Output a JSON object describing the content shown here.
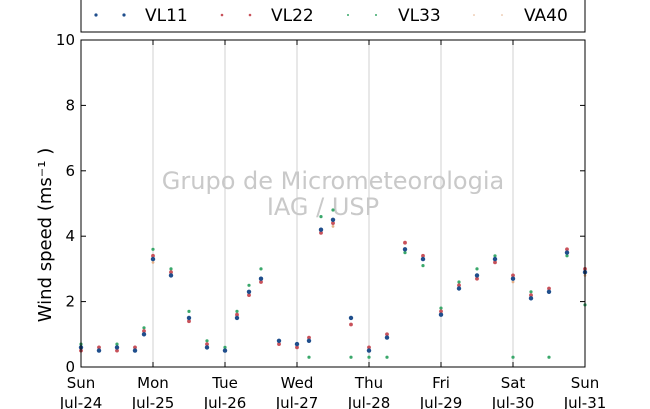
{
  "chart_data": {
    "type": "scatter",
    "title": "",
    "xlabel": "",
    "ylabel": "Wind speed (ms⁻¹ )",
    "ylim": [
      0,
      10
    ],
    "yticks": [
      0,
      2,
      4,
      6,
      8,
      10
    ],
    "xlim": [
      "2016-07-24 00:00",
      "2016-07-31 00:00"
    ],
    "xticks": [
      {
        "day": "Sun",
        "date": "Jul-24"
      },
      {
        "day": "Mon",
        "date": "Jul-25"
      },
      {
        "day": "Tue",
        "date": "Jul-26"
      },
      {
        "day": "Wed",
        "date": "Jul-27"
      },
      {
        "day": "Thu",
        "date": "Jul-28"
      },
      {
        "day": "Fri",
        "date": "Jul-29"
      },
      {
        "day": "Sat",
        "date": "Jul-30"
      },
      {
        "day": "Sun",
        "date": "Jul-31"
      }
    ],
    "grid": "vertical",
    "legend_position": "top",
    "watermark": [
      "Grupo de Micrometeorologia",
      "IAG / USP"
    ],
    "series": [
      {
        "name": "VL11",
        "color": "#1f4e8c",
        "x": [
          "07-24 00:00",
          "07-24 06:00",
          "07-24 12:00",
          "07-24 18:00",
          "07-24 21:00",
          "07-25 00:00",
          "07-25 06:00",
          "07-25 12:00",
          "07-25 18:00",
          "07-26 00:00",
          "07-26 04:00",
          "07-26 08:00",
          "07-26 12:00",
          "07-26 18:00",
          "07-27 00:00",
          "07-27 04:00",
          "07-27 08:00",
          "07-27 12:00",
          "07-27 18:00",
          "07-28 00:00",
          "07-28 06:00",
          "07-28 12:00",
          "07-28 18:00",
          "07-29 00:00",
          "07-29 06:00",
          "07-29 12:00",
          "07-29 18:00",
          "07-30 00:00",
          "07-30 06:00",
          "07-30 12:00",
          "07-30 18:00",
          "07-31 00:00"
        ],
        "y": [
          0.6,
          0.5,
          0.6,
          0.5,
          1.0,
          3.3,
          2.8,
          1.5,
          0.6,
          0.5,
          1.5,
          2.3,
          2.7,
          0.8,
          0.7,
          0.8,
          4.2,
          4.5,
          1.5,
          0.5,
          0.9,
          3.6,
          3.3,
          1.6,
          2.4,
          2.8,
          3.3,
          2.7,
          2.1,
          2.3,
          3.5,
          2.9
        ]
      },
      {
        "name": "VL22",
        "color": "#c8515a",
        "x": [
          "07-24 00:00",
          "07-24 06:00",
          "07-24 12:00",
          "07-24 18:00",
          "07-24 21:00",
          "07-25 00:00",
          "07-25 06:00",
          "07-25 12:00",
          "07-25 18:00",
          "07-26 00:00",
          "07-26 04:00",
          "07-26 08:00",
          "07-26 12:00",
          "07-26 18:00",
          "07-27 00:00",
          "07-27 04:00",
          "07-27 08:00",
          "07-27 12:00",
          "07-27 18:00",
          "07-28 00:00",
          "07-28 06:00",
          "07-28 12:00",
          "07-28 18:00",
          "07-29 00:00",
          "07-29 06:00",
          "07-29 12:00",
          "07-29 18:00",
          "07-30 00:00",
          "07-30 06:00",
          "07-30 12:00",
          "07-30 18:00",
          "07-31 00:00"
        ],
        "y": [
          0.5,
          0.6,
          0.5,
          0.6,
          1.1,
          3.4,
          2.9,
          1.4,
          0.7,
          0.5,
          1.6,
          2.2,
          2.6,
          0.7,
          0.6,
          0.9,
          4.1,
          4.4,
          1.3,
          0.6,
          1.0,
          3.8,
          3.4,
          1.7,
          2.5,
          2.7,
          3.2,
          2.8,
          2.2,
          2.4,
          3.6,
          3.0
        ]
      },
      {
        "name": "VL33",
        "color": "#3aa86b",
        "x": [
          "07-24 00:00",
          "07-24 06:00",
          "07-24 12:00",
          "07-24 18:00",
          "07-24 21:00",
          "07-25 00:00",
          "07-25 06:00",
          "07-25 12:00",
          "07-25 18:00",
          "07-26 00:00",
          "07-26 04:00",
          "07-26 08:00",
          "07-26 12:00",
          "07-26 18:00",
          "07-27 00:00",
          "07-27 04:00",
          "07-27 08:00",
          "07-27 12:00",
          "07-27 18:00",
          "07-28 00:00",
          "07-28 06:00",
          "07-28 12:00",
          "07-28 18:00",
          "07-29 00:00",
          "07-29 06:00",
          "07-29 12:00",
          "07-29 18:00",
          "07-30 00:00",
          "07-30 06:00",
          "07-30 12:00",
          "07-30 18:00",
          "07-31 00:00"
        ],
        "y": [
          0.7,
          0.6,
          0.7,
          0.6,
          1.2,
          3.6,
          3.0,
          1.7,
          0.8,
          0.6,
          1.7,
          2.5,
          3.0,
          0.8,
          0.7,
          0.3,
          4.6,
          4.8,
          0.3,
          0.3,
          0.3,
          3.5,
          3.1,
          1.8,
          2.6,
          3.0,
          3.4,
          0.3,
          2.3,
          0.3,
          3.4,
          1.9
        ]
      },
      {
        "name": "VA40",
        "color": "#e3b089",
        "x": [
          "07-24 00:00",
          "07-24 12:00",
          "07-25 00:00",
          "07-25 12:00",
          "07-26 00:00",
          "07-26 12:00",
          "07-27 00:00",
          "07-27 12:00",
          "07-28 00:00",
          "07-28 12:00",
          "07-29 00:00",
          "07-29 12:00",
          "07-30 00:00",
          "07-30 12:00",
          "07-31 00:00"
        ],
        "y": [
          0.5,
          0.5,
          3.2,
          1.4,
          0.5,
          2.6,
          0.7,
          4.3,
          0.6,
          3.5,
          1.6,
          2.7,
          2.6,
          2.3,
          2.8
        ]
      }
    ]
  }
}
